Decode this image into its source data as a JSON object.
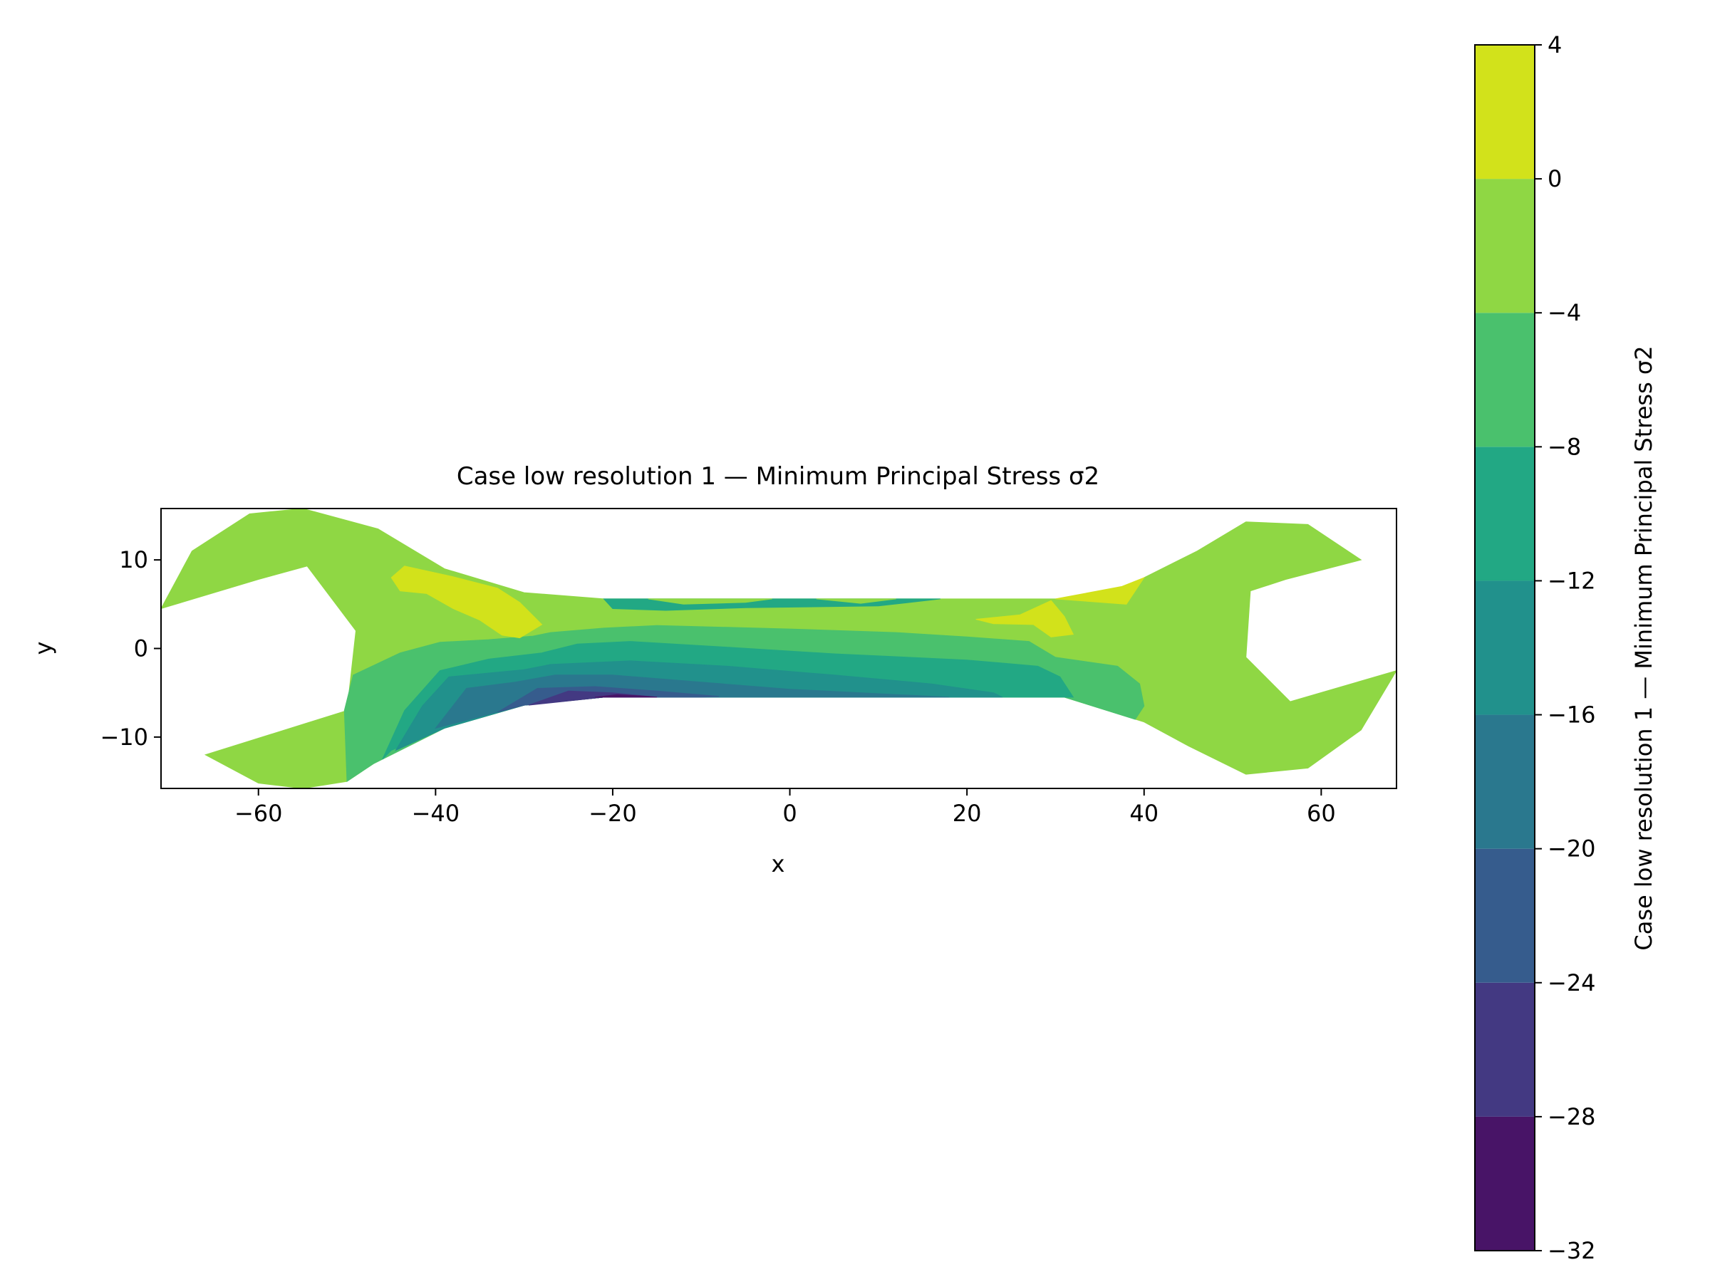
{
  "chart_data": {
    "type": "contour",
    "title": "Case low resolution 1 — Minimum Principal Stress σ2",
    "xlabel": "x",
    "ylabel": "y",
    "xlim": [
      -71,
      68.5
    ],
    "ylim": [
      -15.8,
      15.8
    ],
    "x_ticks": [
      -60,
      -40,
      -20,
      0,
      20,
      40,
      60
    ],
    "y_ticks": [
      -10,
      0,
      10
    ],
    "colorbar": {
      "label": "Case low resolution 1 — Minimum Principal Stress σ2",
      "range": [
        -32,
        4
      ],
      "ticks": [
        4,
        0,
        -4,
        -8,
        -12,
        -16,
        -20,
        -24,
        -28,
        -32
      ],
      "levels": [
        {
          "range": [
            -32,
            -28
          ],
          "color": "#481467"
        },
        {
          "range": [
            -28,
            -24
          ],
          "color": "#433982"
        },
        {
          "range": [
            -24,
            -20
          ],
          "color": "#365c8d"
        },
        {
          "range": [
            -20,
            -16
          ],
          "color": "#2a788e"
        },
        {
          "range": [
            -16,
            -12
          ],
          "color": "#21918c"
        },
        {
          "range": [
            -12,
            -8
          ],
          "color": "#22a884"
        },
        {
          "range": [
            -8,
            -4
          ],
          "color": "#4ac16d"
        },
        {
          "range": [
            -4,
            0
          ],
          "color": "#8fd744"
        },
        {
          "range": [
            0,
            4
          ],
          "color": "#d2e21b"
        }
      ]
    },
    "regions": [
      {
        "level": "-4..0",
        "color": "#8fd744",
        "points": [
          [
            -71,
            4.5
          ],
          [
            -67.5,
            11
          ],
          [
            -61,
            15.2
          ],
          [
            -55,
            15.8
          ],
          [
            -46.5,
            13.5
          ],
          [
            -39,
            9
          ],
          [
            -30,
            6.3
          ],
          [
            -21,
            5.6
          ],
          [
            0,
            5.6
          ],
          [
            20,
            5.6
          ],
          [
            37,
            5.6
          ],
          [
            40,
            8
          ],
          [
            46,
            11
          ],
          [
            51.5,
            14.3
          ],
          [
            58.5,
            14
          ],
          [
            64.5,
            10
          ],
          [
            56,
            7.8
          ],
          [
            52,
            6.5
          ],
          [
            51.5,
            -1
          ],
          [
            56.5,
            -6
          ],
          [
            68.5,
            -2.5
          ],
          [
            64.5,
            -9.2
          ],
          [
            58.5,
            -13.5
          ],
          [
            51.5,
            -14.2
          ],
          [
            45,
            -11
          ],
          [
            40,
            -8.3
          ],
          [
            31,
            -5.5
          ],
          [
            20,
            -5.5
          ],
          [
            0,
            -5.5
          ],
          [
            -21,
            -5.5
          ],
          [
            -30,
            -6.4
          ],
          [
            -39,
            -9
          ],
          [
            -47,
            -13
          ],
          [
            -50,
            -15
          ],
          [
            -55,
            -15.8
          ],
          [
            -60,
            -15.2
          ],
          [
            -66,
            -12
          ],
          [
            -50,
            -7
          ],
          [
            -49,
            2
          ],
          [
            -54.5,
            9.3
          ],
          [
            -60,
            7.8
          ]
        ]
      },
      {
        "level": "-8..-4",
        "color": "#4ac16d",
        "points": [
          [
            -50.3,
            -7
          ],
          [
            -49.3,
            -3
          ],
          [
            -44,
            -0.5
          ],
          [
            -39.5,
            0.7
          ],
          [
            -34,
            1
          ],
          [
            -29,
            1.4
          ],
          [
            -27,
            1.8
          ],
          [
            -21,
            2.3
          ],
          [
            -15,
            2.6
          ],
          [
            0,
            2.2
          ],
          [
            12,
            1.8
          ],
          [
            20,
            1.3
          ],
          [
            27,
            0.8
          ],
          [
            30,
            -1
          ],
          [
            37,
            -2
          ],
          [
            39.5,
            -4
          ],
          [
            40,
            -6.5
          ],
          [
            39,
            -8
          ],
          [
            31,
            -5.5
          ],
          [
            20,
            -5.5
          ],
          [
            0,
            -5.5
          ],
          [
            -21,
            -5.5
          ],
          [
            -30,
            -6.4
          ],
          [
            -39,
            -9
          ],
          [
            -47,
            -13
          ],
          [
            -50,
            -15
          ]
        ]
      },
      {
        "level": "-12..-8",
        "color": "#22a884",
        "points": [
          [
            -46,
            -12.5
          ],
          [
            -43.5,
            -7
          ],
          [
            -39.5,
            -2.5
          ],
          [
            -34,
            -1.2
          ],
          [
            -28,
            -0.5
          ],
          [
            -24,
            0.5
          ],
          [
            -18,
            0.8
          ],
          [
            -8,
            0.2
          ],
          [
            5,
            -0.6
          ],
          [
            20,
            -1.3
          ],
          [
            28,
            -2
          ],
          [
            30.5,
            -3.2
          ],
          [
            32,
            -5.5
          ],
          [
            20,
            -5.5
          ],
          [
            0,
            -5.5
          ],
          [
            -21,
            -5.5
          ],
          [
            -30,
            -6.4
          ],
          [
            -39,
            -9
          ],
          [
            -45,
            -11.5
          ]
        ]
      },
      {
        "level": "-16..-12",
        "color": "#21918c",
        "points": [
          [
            -44.5,
            -11.5
          ],
          [
            -41.5,
            -6.5
          ],
          [
            -38.5,
            -3.2
          ],
          [
            -30,
            -2.4
          ],
          [
            -27,
            -1.8
          ],
          [
            -18,
            -1.4
          ],
          [
            -7,
            -2
          ],
          [
            5,
            -3
          ],
          [
            16,
            -4
          ],
          [
            23,
            -5
          ],
          [
            24,
            -5.5
          ],
          [
            0,
            -5.5
          ],
          [
            -21,
            -5.5
          ],
          [
            -30,
            -6.4
          ],
          [
            -39,
            -9
          ]
        ]
      },
      {
        "level": "-20..-16",
        "color": "#2a788e",
        "points": [
          [
            -40,
            -9
          ],
          [
            -36.5,
            -4.5
          ],
          [
            -31,
            -3.8
          ],
          [
            -26.5,
            -3
          ],
          [
            -20,
            -3
          ],
          [
            -10,
            -3.8
          ],
          [
            0,
            -4.6
          ],
          [
            12,
            -5.2
          ],
          [
            18,
            -5.5
          ],
          [
            0,
            -5.5
          ],
          [
            -21,
            -5.5
          ],
          [
            -30,
            -6.4
          ]
        ]
      },
      {
        "level": "-24..-20",
        "color": "#365c8d",
        "points": [
          [
            -33,
            -7.2
          ],
          [
            -28.5,
            -4.5
          ],
          [
            -22,
            -4.3
          ],
          [
            -15,
            -4.8
          ],
          [
            -8,
            -5.4
          ],
          [
            -10,
            -5.5
          ],
          [
            -21,
            -5.5
          ],
          [
            -30,
            -6.4
          ]
        ]
      },
      {
        "level": "-28..-24",
        "color": "#433982",
        "points": [
          [
            -29.5,
            -6.4
          ],
          [
            -25,
            -4.8
          ],
          [
            -20,
            -5
          ],
          [
            -15,
            -5.5
          ],
          [
            -21,
            -5.5
          ]
        ]
      },
      {
        "level": "-32..-28",
        "color": "#481467",
        "points": [
          [
            -22,
            -5.5
          ],
          [
            -19.5,
            -5.2
          ],
          [
            -16,
            -5.4
          ],
          [
            -15,
            -5.5
          ]
        ]
      },
      {
        "level": "-12..-8",
        "color": "#22a884",
        "points": [
          [
            -21,
            5.6
          ],
          [
            -20,
            4.5
          ],
          [
            -14,
            4.3
          ],
          [
            -5,
            4.6
          ],
          [
            10,
            4.8
          ],
          [
            17,
            5.6
          ]
        ]
      },
      {
        "level": "-4..0",
        "color": "#8fd744",
        "points": [
          [
            -16,
            5.6
          ],
          [
            -12,
            5.0
          ],
          [
            -5,
            5.2
          ],
          [
            -2,
            5.6
          ]
        ]
      },
      {
        "level": "-4..0",
        "color": "#8fd744",
        "points": [
          [
            3,
            5.6
          ],
          [
            8,
            5.1
          ],
          [
            12,
            5.6
          ]
        ]
      },
      {
        "level": "0..4",
        "color": "#d2e21b",
        "points": [
          [
            -45,
            8
          ],
          [
            -43.5,
            9.3
          ],
          [
            -38,
            8.1
          ],
          [
            -33,
            6.8
          ],
          [
            -30.5,
            5.2
          ],
          [
            -28,
            2.7
          ],
          [
            -30.5,
            1.2
          ],
          [
            -32.5,
            1.5
          ],
          [
            -35,
            3.2
          ],
          [
            -38,
            4.5
          ],
          [
            -41,
            6.2
          ],
          [
            -44,
            6.5
          ]
        ]
      },
      {
        "level": "0..4",
        "color": "#d2e21b",
        "points": [
          [
            21,
            3.3
          ],
          [
            26,
            3.8
          ],
          [
            29.5,
            5.4
          ],
          [
            31,
            3.6
          ],
          [
            32,
            1.6
          ],
          [
            29.5,
            1.3
          ],
          [
            27.5,
            2.7
          ],
          [
            23,
            2.8
          ]
        ]
      },
      {
        "level": "0..4",
        "color": "#d2e21b",
        "points": [
          [
            30,
            5.6
          ],
          [
            37.5,
            7
          ],
          [
            40,
            8
          ],
          [
            38,
            5
          ]
        ]
      }
    ]
  }
}
